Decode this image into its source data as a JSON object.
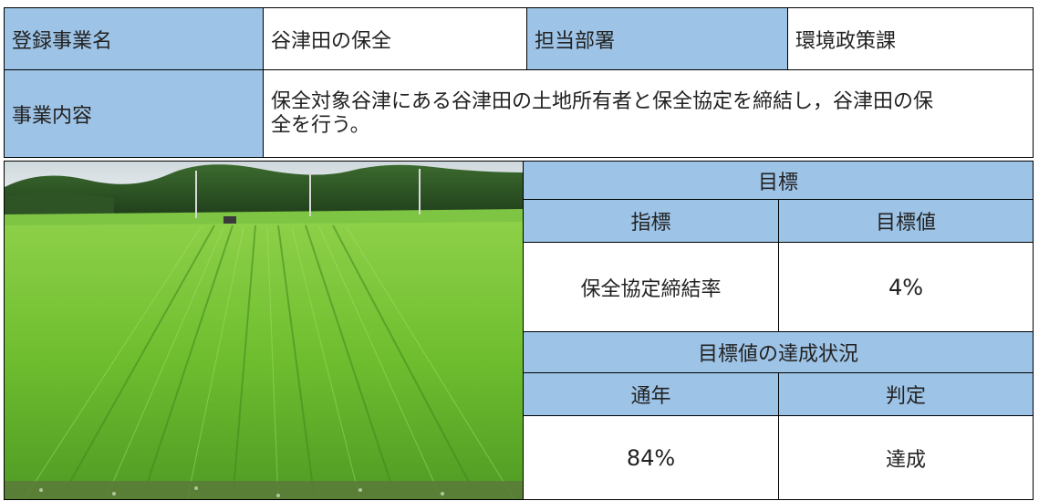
{
  "row1": {
    "label_name": "登録事業名",
    "value_name": "谷津田の保全",
    "label_dept": "担当部署",
    "value_dept": "環境政策課"
  },
  "row2": {
    "label_content": "事業内容",
    "value_content_line1": "保全対象谷津にある谷津田の土地所有者と保全協定を締結し，谷津田の保",
    "value_content_line2": "全を行う。"
  },
  "goal": {
    "header": "目標",
    "col_indicator": "指標",
    "col_target": "目標値",
    "indicator": "保全協定締結率",
    "target_value": "4%"
  },
  "status": {
    "header": "目標値の達成状況",
    "col_year": "通年",
    "col_judgement": "判定",
    "year_value": "84%",
    "judgement": "達成"
  },
  "colors": {
    "label_blue": "#9dc3e6",
    "border": "#000000",
    "rice_green": "#6fbe2f",
    "forest_green": "#2c4f22"
  }
}
